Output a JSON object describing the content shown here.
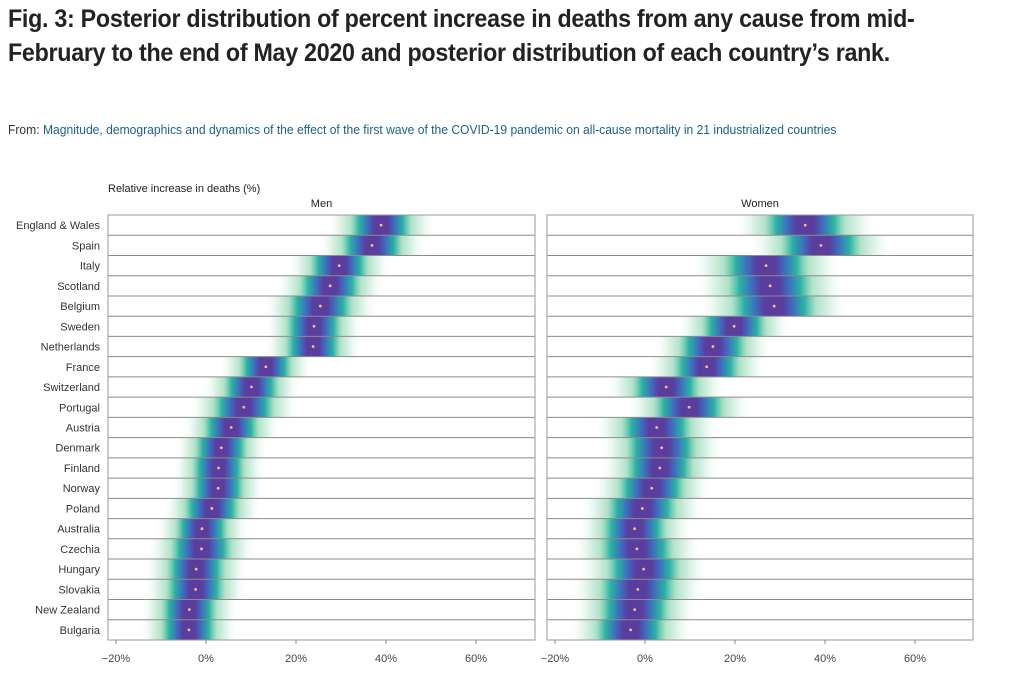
{
  "figure": {
    "title": "Fig. 3: Posterior distribution of percent increase in deaths from any cause from mid-February to the end of May 2020 and posterior distribution of each country’s rank.",
    "from_label": "From:",
    "source_link": "Magnitude, demographics and dynamics of the effect of the first wave of the COVID-19 pandemic on all-cause mortality in 21 industrialized countries"
  },
  "colors": {
    "core": "#5a3d9e",
    "mid": "#3f6bbf",
    "teal": "#1fae9f",
    "light": "#7fd0a6",
    "dot": "#f2c38c",
    "gridline": "#9a9a9a"
  },
  "chart_data": {
    "type": "heatmap",
    "subtype": "posterior density strips with median points",
    "axis_title": "Relative increase in deaths (%)",
    "xlim": [
      -22,
      74
    ],
    "xticks": [
      -20,
      0,
      20,
      40,
      60
    ],
    "xtick_labels": [
      "−20%",
      "0%",
      "20%",
      "40%",
      "60%"
    ],
    "grid": false,
    "categories": [
      "England & Wales",
      "Spain",
      "Italy",
      "Scotland",
      "Belgium",
      "Sweden",
      "Netherlands",
      "France",
      "Switzerland",
      "Portugal",
      "Austria",
      "Denmark",
      "Finland",
      "Norway",
      "Poland",
      "Australia",
      "Czechia",
      "Hungary",
      "Slovakia",
      "New Zealand",
      "Bulgaria"
    ],
    "panels": [
      {
        "name": "Men",
        "median": [
          38.9,
          36.9,
          29.6,
          27.6,
          25.4,
          24.0,
          23.8,
          13.3,
          10.1,
          8.4,
          5.6,
          3.4,
          2.8,
          2.7,
          1.3,
          -0.9,
          -1.0,
          -2.2,
          -2.3,
          -3.7,
          -3.8
        ],
        "spread": [
          4.2,
          4.2,
          4.0,
          4.2,
          4.4,
          3.8,
          3.8,
          3.6,
          3.8,
          4.2,
          3.8,
          3.6,
          3.6,
          3.6,
          3.8,
          3.6,
          4.2,
          4.0,
          4.0,
          3.8,
          3.8
        ]
      },
      {
        "name": "Women",
        "median": [
          35.6,
          39.1,
          26.9,
          27.8,
          28.7,
          19.8,
          15.1,
          13.7,
          4.7,
          9.8,
          2.6,
          3.7,
          3.3,
          1.5,
          -0.6,
          -2.3,
          -1.8,
          -0.3,
          -1.6,
          -2.3,
          -3.2
        ],
        "spread": [
          5.5,
          5.5,
          5.8,
          5.8,
          5.8,
          4.4,
          4.6,
          4.6,
          4.6,
          4.8,
          4.8,
          4.8,
          4.6,
          4.6,
          4.8,
          4.4,
          5.0,
          5.0,
          5.2,
          4.8,
          4.8
        ]
      }
    ]
  }
}
